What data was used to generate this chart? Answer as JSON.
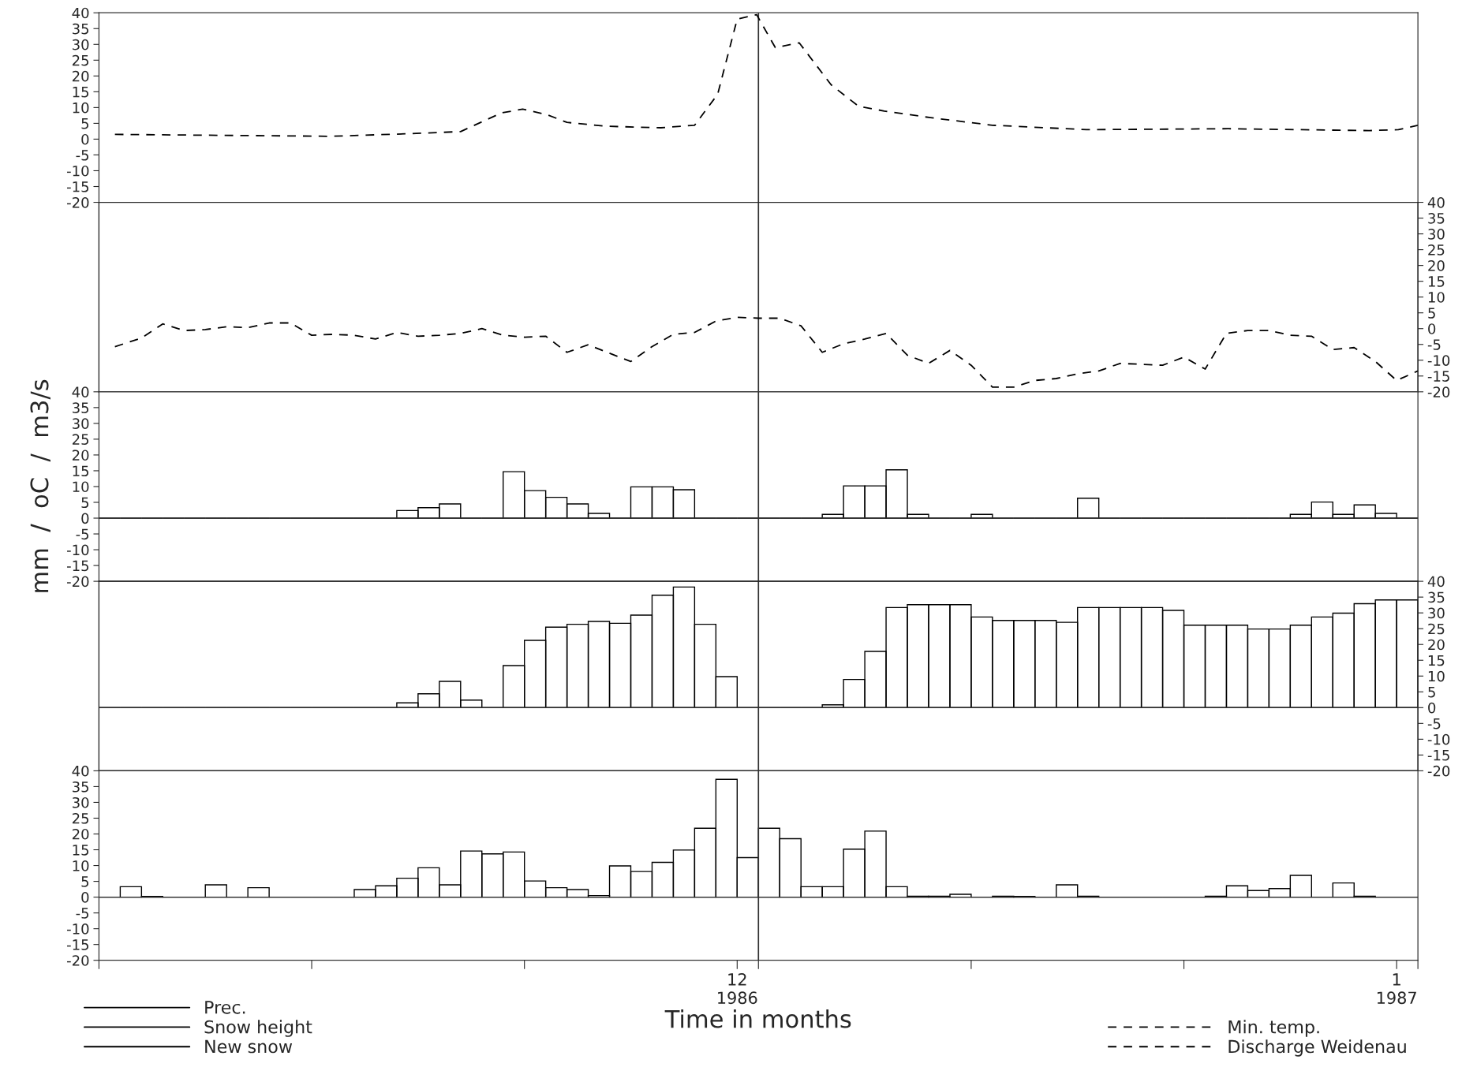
{
  "chart_data": [
    {
      "type": "line",
      "line_style": "dashed",
      "legend": "bottom right",
      "tick_labels": "y",
      "xlim": [
        "1986-11-01",
        "1987-01-02"
      ],
      "ylim": [
        -20,
        40
      ],
      "yticks": [
        40,
        35,
        30,
        25,
        20,
        15,
        10,
        5,
        0,
        -5,
        -10,
        -15,
        -20
      ],
      "series": [
        {
          "name": "Discharge Weidenau",
          "color": "#000000",
          "x": [
            "1986-11-01T18:00",
            "1986-11-11T22:00",
            "1986-11-15T22:00",
            "1986-11-18",
            "1986-11-19T22:00",
            "1986-11-20T22:00",
            "1986-11-22T02:00",
            "1986-11-23",
            "1986-11-24T19:00",
            "1986-11-27T10:00",
            "1986-11-29",
            "1986-11-30T02:00",
            "1986-12-01",
            "1986-12-01T22:00",
            "1986-12-02T19:00",
            "1986-12-03T22:00",
            "1986-12-05T10:00",
            "1986-12-06T17:00",
            "1986-12-07T22:00",
            "1986-12-10T02:00",
            "1986-12-13",
            "1986-12-17T10:00",
            "1986-12-24T02:00",
            "1986-12-30T17:00",
            "1987-01-01T02:00",
            "1987-01-02"
          ],
          "values": [
            1.5,
            0.9,
            1.8,
            2.4,
            8.3,
            9.5,
            7.7,
            5.3,
            4.1,
            3.6,
            4.4,
            14.2,
            38,
            39.4,
            29,
            30.5,
            17.2,
            10.4,
            8.9,
            6.8,
            4.4,
            3,
            3.3,
            2.7,
            3,
            4.4
          ]
        }
      ],
      "ref_lines": [
        {
          "axis": "x",
          "value": "1986-12-02"
        }
      ]
    },
    {
      "type": "line",
      "line_style": "dashed",
      "legend": "bottom right",
      "tick_labels": "y",
      "xlim": [
        "1986-11-01",
        "1987-01-02"
      ],
      "y2lim": [
        -20,
        40
      ],
      "y2ticks": [
        40,
        35,
        30,
        25,
        20,
        15,
        10,
        5,
        0,
        -5,
        -10,
        -15,
        -20
      ],
      "series": [
        {
          "name": "Min. temp.",
          "color": "#000000",
          "axis": "y2",
          "x": [
            "1986-11-01T18:00",
            "1986-11-03",
            "1986-11-04",
            "1986-11-05",
            "1986-11-06",
            "1986-11-07",
            "1986-11-08",
            "1986-11-09",
            "1986-11-10",
            "1986-11-11",
            "1986-11-12",
            "1986-11-13",
            "1986-11-14",
            "1986-11-15",
            "1986-11-16",
            "1986-11-17",
            "1986-11-18",
            "1986-11-19",
            "1986-11-20",
            "1986-11-21",
            "1986-11-22",
            "1986-11-23",
            "1986-11-24",
            "1986-11-25",
            "1986-11-26",
            "1986-11-27",
            "1986-11-28",
            "1986-11-29",
            "1986-11-30",
            "1986-12-01",
            "1986-12-02",
            "1986-12-03",
            "1986-12-04",
            "1986-12-05",
            "1986-12-06",
            "1986-12-07",
            "1986-12-08",
            "1986-12-09",
            "1986-12-10",
            "1986-12-11",
            "1986-12-12",
            "1986-12-13",
            "1986-12-14",
            "1986-12-15",
            "1986-12-16",
            "1986-12-17",
            "1986-12-18",
            "1986-12-19",
            "1986-12-20",
            "1986-12-21",
            "1986-12-22",
            "1986-12-23",
            "1986-12-24",
            "1986-12-25",
            "1986-12-26",
            "1986-12-27",
            "1986-12-28",
            "1986-12-29",
            "1986-12-30",
            "1986-12-31",
            "1987-01-01",
            "1987-01-02"
          ],
          "values": [
            -5.7,
            -3,
            1.5,
            -0.6,
            -0.3,
            0.6,
            0.3,
            1.8,
            1.8,
            -2.1,
            -1.8,
            -2.1,
            -3.3,
            -1.2,
            -2.4,
            -2.1,
            -1.5,
            0,
            -2.1,
            -2.7,
            -2.4,
            -7.5,
            -5.1,
            -7.8,
            -10.4,
            -5.7,
            -1.8,
            -1.2,
            2.4,
            3.6,
            3.3,
            3.3,
            0.9,
            -7.5,
            -4.8,
            -3.3,
            -1.5,
            -8.4,
            -11,
            -6.9,
            -11.6,
            -18.5,
            -18.5,
            -16.4,
            -15.8,
            -14.3,
            -13.4,
            -11,
            -11.3,
            -11.6,
            -9,
            -12.8,
            -1.5,
            -0.6,
            -0.6,
            -2.1,
            -2.4,
            -6.6,
            -6,
            -10.4,
            -16.4,
            -13.4
          ]
        }
      ],
      "ref_lines": [
        {
          "axis": "x",
          "value": "1986-12-02"
        }
      ]
    },
    {
      "type": "bar",
      "legend": "bottom left",
      "tick_labels": "y",
      "ylabel": "mm  /  oC  /  m3/s",
      "xlim": [
        "1986-11-01",
        "1987-01-02"
      ],
      "ylim": [
        -20,
        40
      ],
      "yticks": [
        40,
        35,
        30,
        25,
        20,
        15,
        10,
        5,
        0,
        -5,
        -10,
        -15,
        -20
      ],
      "x": [
        "1986-11-01T12:00",
        "1986-11-02T12:00",
        "1986-11-03T12:00",
        "1986-11-04T12:00",
        "1986-11-05T12:00",
        "1986-11-06T12:00",
        "1986-11-07T12:00",
        "1986-11-08T12:00",
        "1986-11-09T12:00",
        "1986-11-10T12:00",
        "1986-11-11T12:00",
        "1986-11-12T12:00",
        "1986-11-13T12:00",
        "1986-11-14T12:00",
        "1986-11-15T12:00",
        "1986-11-16T12:00",
        "1986-11-17T12:00",
        "1986-11-18T12:00",
        "1986-11-19T12:00",
        "1986-11-20T12:00",
        "1986-11-21T12:00",
        "1986-11-22T12:00",
        "1986-11-23T12:00",
        "1986-11-24T12:00",
        "1986-11-25T12:00",
        "1986-11-26T12:00",
        "1986-11-27T12:00",
        "1986-11-28T12:00",
        "1986-11-29T12:00",
        "1986-11-30T12:00",
        "1986-12-01T12:00",
        "1986-12-02T12:00",
        "1986-12-03T12:00",
        "1986-12-04T12:00",
        "1986-12-05T12:00",
        "1986-12-06T12:00",
        "1986-12-07T12:00",
        "1986-12-08T12:00",
        "1986-12-09T12:00",
        "1986-12-10T12:00",
        "1986-12-11T12:00",
        "1986-12-12T12:00",
        "1986-12-13T12:00",
        "1986-12-14T12:00",
        "1986-12-15T12:00",
        "1986-12-16T12:00",
        "1986-12-17T12:00",
        "1986-12-18T12:00",
        "1986-12-19T12:00",
        "1986-12-20T12:00",
        "1986-12-21T12:00",
        "1986-12-22T12:00",
        "1986-12-23T12:00",
        "1986-12-24T12:00",
        "1986-12-25T12:00",
        "1986-12-26T12:00",
        "1986-12-27T12:00",
        "1986-12-28T12:00",
        "1986-12-29T12:00",
        "1986-12-30T12:00",
        "1986-12-31T12:00",
        "1987-01-01T12:00"
      ],
      "series": [
        {
          "name": "New snow",
          "color": "#000000",
          "values": [
            0,
            0,
            0,
            0,
            0,
            0,
            0,
            0,
            0,
            0,
            0,
            0,
            0,
            0,
            2.4,
            3.3,
            4.5,
            0,
            0,
            14.7,
            8.7,
            6.6,
            4.5,
            1.5,
            0,
            9.9,
            9.9,
            9,
            0,
            0,
            0,
            0,
            0,
            0,
            1.2,
            10.2,
            10.2,
            15.3,
            1.2,
            0,
            0,
            1.2,
            0,
            0,
            0,
            0,
            6.3,
            0,
            0,
            0,
            0,
            0,
            0,
            0,
            0,
            0,
            1.2,
            5.1,
            1.2,
            4.2,
            1.5,
            0
          ]
        }
      ],
      "ref_lines": [
        {
          "axis": "x",
          "value": "1986-12-02"
        },
        {
          "axis": "y",
          "value": 0
        }
      ]
    },
    {
      "type": "bar",
      "legend": "bottom left",
      "tick_labels": "y",
      "xlim": [
        "1986-11-01",
        "1987-01-02"
      ],
      "y2lim": [
        -20,
        40
      ],
      "y2ticks": [
        40,
        35,
        30,
        25,
        20,
        15,
        10,
        5,
        0,
        -5,
        -10,
        -15,
        -20
      ],
      "x": [
        "1986-11-01T12:00",
        "1986-11-02T12:00",
        "1986-11-03T12:00",
        "1986-11-04T12:00",
        "1986-11-05T12:00",
        "1986-11-06T12:00",
        "1986-11-07T12:00",
        "1986-11-08T12:00",
        "1986-11-09T12:00",
        "1986-11-10T12:00",
        "1986-11-11T12:00",
        "1986-11-12T12:00",
        "1986-11-13T12:00",
        "1986-11-14T12:00",
        "1986-11-15T12:00",
        "1986-11-16T12:00",
        "1986-11-17T12:00",
        "1986-11-18T12:00",
        "1986-11-19T12:00",
        "1986-11-20T12:00",
        "1986-11-21T12:00",
        "1986-11-22T12:00",
        "1986-11-23T12:00",
        "1986-11-24T12:00",
        "1986-11-25T12:00",
        "1986-11-26T12:00",
        "1986-11-27T12:00",
        "1986-11-28T12:00",
        "1986-11-29T12:00",
        "1986-11-30T12:00",
        "1986-12-01T12:00",
        "1986-12-02T12:00",
        "1986-12-03T12:00",
        "1986-12-04T12:00",
        "1986-12-05T12:00",
        "1986-12-06T12:00",
        "1986-12-07T12:00",
        "1986-12-08T12:00",
        "1986-12-09T12:00",
        "1986-12-10T12:00",
        "1986-12-11T12:00",
        "1986-12-12T12:00",
        "1986-12-13T12:00",
        "1986-12-14T12:00",
        "1986-12-15T12:00",
        "1986-12-16T12:00",
        "1986-12-17T12:00",
        "1986-12-18T12:00",
        "1986-12-19T12:00",
        "1986-12-20T12:00",
        "1986-12-21T12:00",
        "1986-12-22T12:00",
        "1986-12-23T12:00",
        "1986-12-24T12:00",
        "1986-12-25T12:00",
        "1986-12-26T12:00",
        "1986-12-27T12:00",
        "1986-12-28T12:00",
        "1986-12-29T12:00",
        "1986-12-30T12:00",
        "1986-12-31T12:00",
        "1987-01-01T12:00"
      ],
      "series": [
        {
          "name": "Snow height",
          "color": "#000000",
          "axis": "y2",
          "values": [
            0,
            0,
            0,
            0,
            0,
            0,
            0,
            0,
            0,
            0,
            0,
            0,
            0,
            0,
            1.5,
            4.4,
            8.3,
            2.4,
            0,
            13.3,
            21.3,
            25.5,
            26.4,
            27.3,
            26.7,
            29.3,
            35.6,
            38.2,
            26.4,
            9.8,
            0,
            0,
            0,
            0,
            0.9,
            8.9,
            17.8,
            31.7,
            32.6,
            32.6,
            32.6,
            28.7,
            27.6,
            27.6,
            27.6,
            27,
            31.7,
            31.7,
            31.7,
            31.7,
            30.8,
            26.1,
            26.1,
            26.1,
            24.9,
            24.9,
            26.1,
            28.7,
            29.9,
            32.9,
            34.1,
            34.1
          ]
        }
      ],
      "ref_lines": [
        {
          "axis": "x",
          "value": "1986-12-02"
        },
        {
          "axis": "y2",
          "value": 0
        }
      ]
    },
    {
      "type": "bar",
      "legend": "bottom left",
      "xlabel": "Time in months",
      "xlim": [
        "1986-11-01",
        "1987-01-02"
      ],
      "ylim": [
        -20,
        40
      ],
      "yticks": [
        40,
        35,
        30,
        25,
        20,
        15,
        10,
        5,
        0,
        -5,
        -10,
        -15,
        -20
      ],
      "xticks": [
        {
          "value": "1986-11-01",
          "label": null
        },
        {
          "value": "1986-11-11",
          "label": null
        },
        {
          "value": "1986-11-21",
          "label": null
        },
        {
          "value": "1986-12-01",
          "label": "12\n1986"
        },
        {
          "value": "1986-12-02",
          "label": null
        },
        {
          "value": "1986-12-12",
          "label": null
        },
        {
          "value": "1986-12-22",
          "label": null
        },
        {
          "value": "1987-01-01",
          "label": "1\n1987"
        },
        {
          "value": "1987-01-02",
          "label": null
        }
      ],
      "x": [
        "1986-11-01T12:00",
        "1986-11-02T12:00",
        "1986-11-03T12:00",
        "1986-11-04T12:00",
        "1986-11-05T12:00",
        "1986-11-06T12:00",
        "1986-11-07T12:00",
        "1986-11-08T12:00",
        "1986-11-09T12:00",
        "1986-11-10T12:00",
        "1986-11-11T12:00",
        "1986-11-12T12:00",
        "1986-11-13T12:00",
        "1986-11-14T12:00",
        "1986-11-15T12:00",
        "1986-11-16T12:00",
        "1986-11-17T12:00",
        "1986-11-18T12:00",
        "1986-11-19T12:00",
        "1986-11-20T12:00",
        "1986-11-21T12:00",
        "1986-11-22T12:00",
        "1986-11-23T12:00",
        "1986-11-24T12:00",
        "1986-11-25T12:00",
        "1986-11-26T12:00",
        "1986-11-27T12:00",
        "1986-11-28T12:00",
        "1986-11-29T12:00",
        "1986-11-30T12:00",
        "1986-12-01T12:00",
        "1986-12-02T12:00",
        "1986-12-03T12:00",
        "1986-12-04T12:00",
        "1986-12-05T12:00",
        "1986-12-06T12:00",
        "1986-12-07T12:00",
        "1986-12-08T12:00",
        "1986-12-09T12:00",
        "1986-12-10T12:00",
        "1986-12-11T12:00",
        "1986-12-12T12:00",
        "1986-12-13T12:00",
        "1986-12-14T12:00",
        "1986-12-15T12:00",
        "1986-12-16T12:00",
        "1986-12-17T12:00",
        "1986-12-18T12:00",
        "1986-12-19T12:00",
        "1986-12-20T12:00",
        "1986-12-21T12:00",
        "1986-12-22T12:00",
        "1986-12-23T12:00",
        "1986-12-24T12:00",
        "1986-12-25T12:00",
        "1986-12-26T12:00",
        "1986-12-27T12:00",
        "1986-12-28T12:00",
        "1986-12-29T12:00",
        "1986-12-30T12:00",
        "1986-12-31T12:00",
        "1987-01-01T12:00"
      ],
      "series": [
        {
          "name": "Prec.",
          "color": "#000000",
          "values": [
            0,
            3.3,
            0.2,
            0,
            0,
            3.9,
            0,
            3,
            0,
            0,
            0,
            0,
            2.4,
            3.6,
            6,
            9.3,
            3.9,
            14.6,
            13.7,
            14.3,
            5.1,
            3,
            2.4,
            0.5,
            9.9,
            8.1,
            11,
            14.9,
            21.8,
            37.3,
            12.5,
            21.8,
            18.5,
            3.3,
            3.3,
            15.2,
            20.9,
            3.3,
            0.3,
            0.3,
            0.9,
            0,
            0.3,
            0.2,
            0,
            3.9,
            0.3,
            0,
            0,
            0,
            0,
            0,
            0.3,
            3.6,
            2.1,
            2.7,
            6.9,
            0,
            4.5,
            0.3,
            0,
            0
          ]
        }
      ],
      "ref_lines": [
        {
          "axis": "x",
          "value": "1986-12-02"
        },
        {
          "axis": "y",
          "value": 0
        }
      ]
    }
  ]
}
